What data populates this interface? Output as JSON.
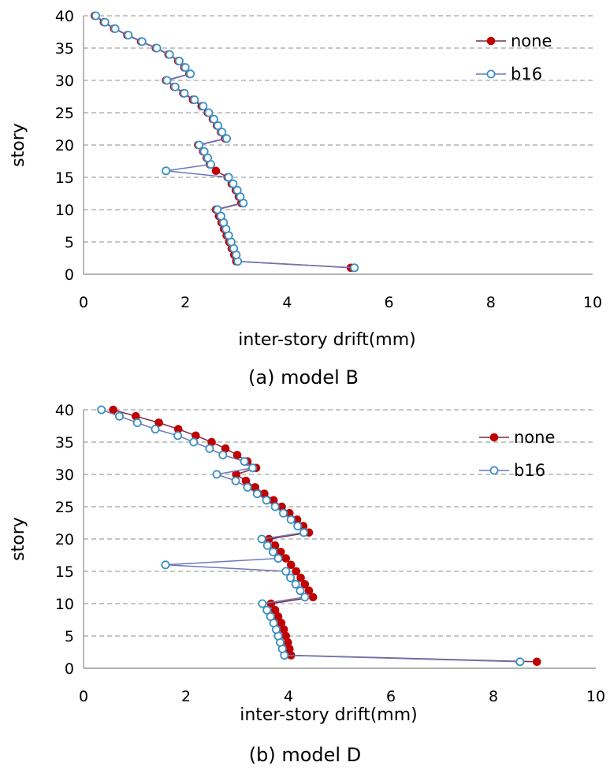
{
  "colors": {
    "none": "#c00000",
    "b16": "#3b8fc4",
    "b16_fill": "#ffffff",
    "grid": "#8c8c8c"
  },
  "chart_data": [
    {
      "type": "line",
      "caption": "(a) model B",
      "xlabel": "inter-story drift(mm)",
      "ylabel": "story",
      "xlim": [
        0,
        10
      ],
      "ylim": [
        0,
        40
      ],
      "xticks": [
        0,
        2,
        4,
        6,
        8,
        10
      ],
      "yticks": [
        0,
        5,
        10,
        15,
        20,
        25,
        30,
        35,
        40
      ],
      "grid": "horizontal dashed",
      "legend": "top-right",
      "y": [
        1,
        2,
        3,
        4,
        5,
        6,
        7,
        8,
        9,
        10,
        11,
        12,
        13,
        14,
        15,
        16,
        17,
        18,
        19,
        20,
        21,
        22,
        23,
        24,
        25,
        26,
        27,
        28,
        29,
        30,
        31,
        32,
        33,
        34,
        35,
        36,
        37,
        38,
        39,
        40
      ],
      "series": [
        {
          "name": "none",
          "marker": "filled-circle",
          "x": [
            5.25,
            3.0,
            2.96,
            2.91,
            2.86,
            2.81,
            2.76,
            2.71,
            2.66,
            2.6,
            3.1,
            3.05,
            2.99,
            2.91,
            2.83,
            2.6,
            2.48,
            2.42,
            2.35,
            2.25,
            2.78,
            2.7,
            2.62,
            2.54,
            2.44,
            2.32,
            2.15,
            1.96,
            1.78,
            1.62,
            2.08,
            1.98,
            1.86,
            1.67,
            1.42,
            1.13,
            0.86,
            0.6,
            0.4,
            0.22
          ]
        },
        {
          "name": "b16",
          "marker": "open-circle",
          "x": [
            5.32,
            3.03,
            3.0,
            2.95,
            2.9,
            2.85,
            2.8,
            2.75,
            2.7,
            2.63,
            3.14,
            3.08,
            3.02,
            2.94,
            2.85,
            1.62,
            2.5,
            2.44,
            2.37,
            2.27,
            2.81,
            2.72,
            2.64,
            2.56,
            2.46,
            2.35,
            2.18,
            1.98,
            1.8,
            1.64,
            2.1,
            2.0,
            1.88,
            1.69,
            1.44,
            1.15,
            0.88,
            0.62,
            0.42,
            0.24
          ]
        }
      ]
    },
    {
      "type": "line",
      "caption": "(b) model D",
      "xlabel": "inter-story drift(mm)",
      "ylabel": "story",
      "xlim": [
        0,
        10
      ],
      "ylim": [
        0,
        40
      ],
      "xticks": [
        0,
        2,
        4,
        6,
        8,
        10
      ],
      "yticks": [
        0,
        5,
        10,
        15,
        20,
        25,
        30,
        35,
        40
      ],
      "grid": "horizontal dashed",
      "legend": "top-right",
      "y": [
        1,
        2,
        3,
        4,
        5,
        6,
        7,
        8,
        9,
        10,
        11,
        12,
        13,
        14,
        15,
        16,
        17,
        18,
        19,
        20,
        21,
        22,
        23,
        24,
        25,
        26,
        27,
        28,
        29,
        30,
        31,
        32,
        33,
        34,
        35,
        36,
        37,
        38,
        39,
        40
      ],
      "series": [
        {
          "name": "none",
          "marker": "filled-circle",
          "x": [
            8.85,
            4.05,
            4.02,
            3.99,
            3.95,
            3.91,
            3.86,
            3.8,
            3.74,
            3.66,
            4.48,
            4.4,
            4.32,
            4.24,
            4.15,
            4.05,
            3.95,
            3.85,
            3.74,
            3.62,
            4.4,
            4.29,
            4.17,
            4.02,
            3.87,
            3.71,
            3.53,
            3.35,
            3.17,
            2.98,
            3.37,
            3.2,
            3.0,
            2.77,
            2.5,
            2.19,
            1.85,
            1.47,
            1.02,
            0.58
          ]
        },
        {
          "name": "b16",
          "marker": "open-circle",
          "x": [
            8.52,
            3.92,
            3.88,
            3.84,
            3.8,
            3.76,
            3.71,
            3.65,
            3.58,
            3.49,
            4.32,
            4.23,
            4.14,
            4.04,
            3.95,
            1.6,
            3.8,
            3.7,
            3.59,
            3.48,
            4.3,
            4.18,
            4.05,
            3.9,
            3.74,
            3.57,
            3.39,
            3.2,
            2.97,
            2.6,
            3.3,
            3.14,
            2.72,
            2.46,
            2.15,
            1.84,
            1.4,
            1.05,
            0.7,
            0.35
          ]
        }
      ]
    }
  ]
}
